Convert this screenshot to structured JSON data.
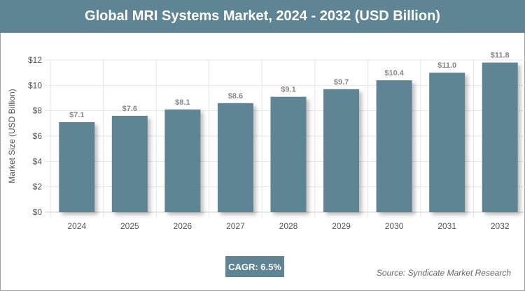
{
  "title": "Global MRI Systems Market, 2024 - 2032 (USD Billion)",
  "cagr": "CAGR: 6.5%",
  "source": "Source: Syndicate Market Research",
  "colors": {
    "bar": "#5f8494",
    "header": "#5f8494"
  },
  "chart_data": {
    "type": "bar",
    "title": "Global MRI Systems Market, 2024 - 2032 (USD Billion)",
    "ylabel": "Market Size (USD Billion)",
    "xlabel": "",
    "categories": [
      "2024",
      "2025",
      "2026",
      "2027",
      "2028",
      "2029",
      "2030",
      "2031",
      "2032"
    ],
    "values": [
      7.1,
      7.6,
      8.1,
      8.6,
      9.1,
      9.7,
      10.4,
      11.0,
      11.8
    ],
    "data_labels": [
      "$7.1",
      "$7.6",
      "$8.1",
      "$8.6",
      "$9.1",
      "$9.7",
      "$10.4",
      "$11.0",
      "$11.8"
    ],
    "ylim": [
      0,
      12
    ],
    "yticks": [
      "$0",
      "$2",
      "$4",
      "$6",
      "$8",
      "$10",
      "$12"
    ],
    "grid": true
  }
}
